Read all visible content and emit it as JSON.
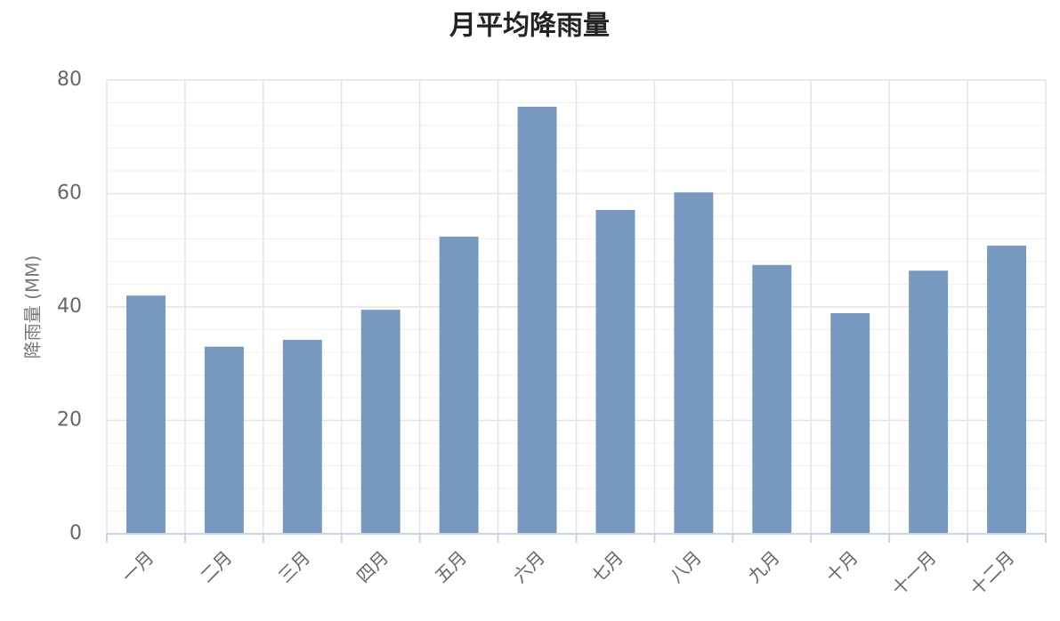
{
  "chart_data": {
    "type": "bar",
    "title": "月平均降雨量",
    "y_label": "降雨量 (MM)",
    "categories": [
      "一月",
      "二月",
      "三月",
      "四月",
      "五月",
      "六月",
      "七月",
      "八月",
      "九月",
      "十月",
      "十一月",
      "十二月"
    ],
    "values": [
      42.0,
      33.0,
      34.2,
      39.5,
      52.4,
      75.3,
      57.1,
      60.2,
      47.4,
      38.9,
      46.4,
      50.8
    ],
    "color": "#7799bf",
    "ylim": [
      0,
      80
    ],
    "yticks": [
      0,
      20,
      40,
      60,
      80
    ],
    "yminorticks": [
      4,
      8,
      12,
      16,
      24,
      28,
      32,
      36,
      44,
      48,
      52,
      56,
      64,
      68,
      72,
      76
    ],
    "grid": true
  }
}
